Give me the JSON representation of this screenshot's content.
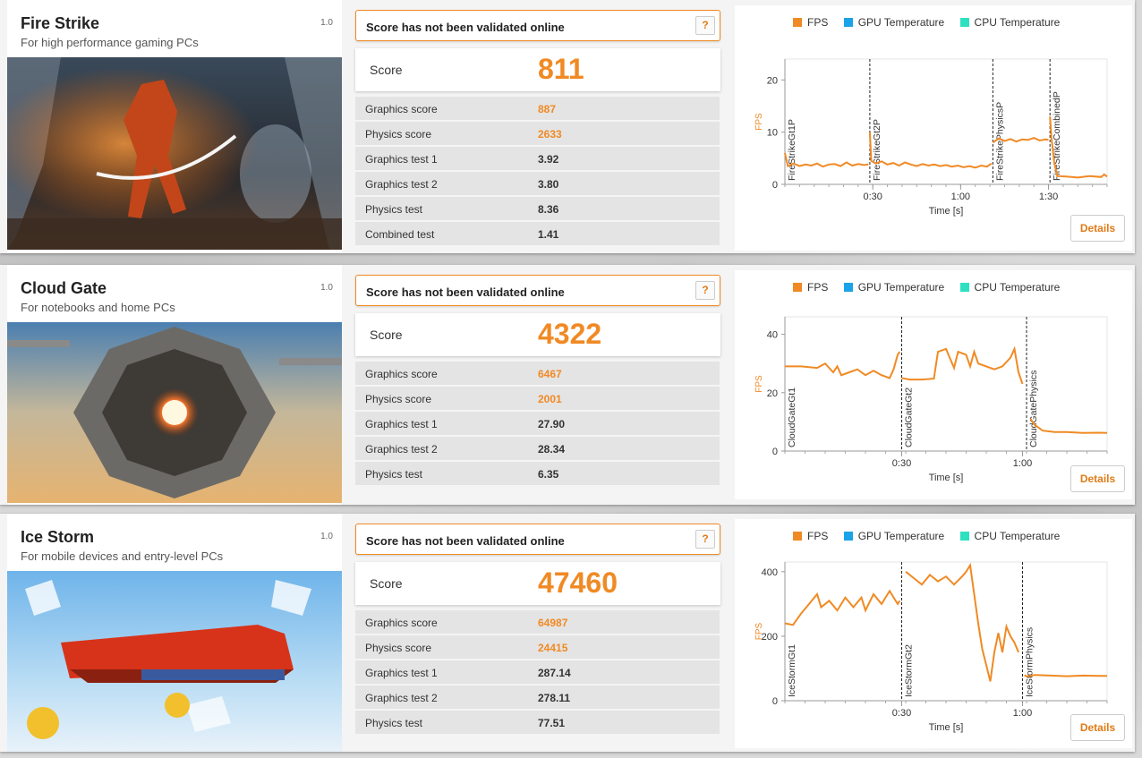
{
  "legend": {
    "fps": "FPS",
    "gpu_temp": "GPU Temperature",
    "cpu_temp": "CPU Temperature",
    "colors": {
      "fps": "#f08a24",
      "gpu_temp": "#1aa3e8",
      "cpu_temp": "#2de0c0"
    }
  },
  "common": {
    "validation_text": "Score has not been validated online",
    "help_label": "?",
    "score_label": "Score",
    "details_label": "Details",
    "x_axis_label": "Time [s]",
    "y_axis_label": "FPS"
  },
  "benchmarks": [
    {
      "title": "Fire Strike",
      "subtitle": "For high performance gaming PCs",
      "version": "1.0",
      "score": "811",
      "rows": [
        {
          "label": "Graphics score",
          "value": "887",
          "highlight": true
        },
        {
          "label": "Physics score",
          "value": "2633",
          "highlight": true
        },
        {
          "label": "Graphics test 1",
          "value": "3.92",
          "highlight": false
        },
        {
          "label": "Graphics test 2",
          "value": "3.80",
          "highlight": false
        },
        {
          "label": "Physics test",
          "value": "8.36",
          "highlight": false
        },
        {
          "label": "Combined test",
          "value": "1.41",
          "highlight": false
        }
      ]
    },
    {
      "title": "Cloud Gate",
      "subtitle": "For notebooks and home PCs",
      "version": "1.0",
      "score": "4322",
      "rows": [
        {
          "label": "Graphics score",
          "value": "6467",
          "highlight": true
        },
        {
          "label": "Physics score",
          "value": "2001",
          "highlight": true
        },
        {
          "label": "Graphics test 1",
          "value": "27.90",
          "highlight": false
        },
        {
          "label": "Graphics test 2",
          "value": "28.34",
          "highlight": false
        },
        {
          "label": "Physics test",
          "value": "6.35",
          "highlight": false
        }
      ]
    },
    {
      "title": "Ice Storm",
      "subtitle": "For mobile devices and entry-level PCs",
      "version": "1.0",
      "score": "47460",
      "rows": [
        {
          "label": "Graphics score",
          "value": "64987",
          "highlight": true
        },
        {
          "label": "Physics score",
          "value": "24415",
          "highlight": true
        },
        {
          "label": "Graphics test 1",
          "value": "287.14",
          "highlight": false
        },
        {
          "label": "Graphics test 2",
          "value": "278.11",
          "highlight": false
        },
        {
          "label": "Physics test",
          "value": "77.51",
          "highlight": false
        }
      ]
    }
  ],
  "chart_data": [
    {
      "type": "line",
      "xlabel": "Time [s]",
      "ylabel": "FPS",
      "xlim": [
        0,
        110
      ],
      "ylim": [
        0,
        24
      ],
      "yticks": [
        0,
        10,
        20
      ],
      "xticks": [
        {
          "v": 30,
          "label": "0:30"
        },
        {
          "v": 60,
          "label": "1:00"
        },
        {
          "v": 90,
          "label": "1:30"
        }
      ],
      "markers": [
        {
          "x": 0,
          "label": "FireStrikeGt1P"
        },
        {
          "x": 29,
          "label": "FireStrikeGt2P"
        },
        {
          "x": 71,
          "label": "FireStrikePhysicsP"
        },
        {
          "x": 90.5,
          "label": "FireStrikeCombinedP"
        }
      ],
      "series": [
        {
          "name": "FPS",
          "segments": [
            [
              [
                0,
                6
              ],
              [
                1,
                3.5
              ],
              [
                3,
                4
              ],
              [
                5,
                3.5
              ],
              [
                7,
                3.8
              ],
              [
                9,
                3.6
              ],
              [
                11,
                4
              ],
              [
                13,
                3.4
              ],
              [
                15,
                3.8
              ],
              [
                17,
                3.9
              ],
              [
                19,
                3.5
              ],
              [
                21,
                4.2
              ],
              [
                23,
                3.6
              ],
              [
                25,
                3.9
              ],
              [
                27,
                3.7
              ],
              [
                28.5,
                3.8
              ]
            ],
            [
              [
                29,
                10
              ],
              [
                29.5,
                4.5
              ],
              [
                31,
                4
              ],
              [
                33,
                4.4
              ],
              [
                35,
                3.8
              ],
              [
                37,
                4.1
              ],
              [
                39,
                3.6
              ],
              [
                41,
                4.2
              ],
              [
                43,
                3.8
              ],
              [
                45,
                3.5
              ],
              [
                47,
                3.9
              ],
              [
                49,
                3.6
              ],
              [
                51,
                3.8
              ],
              [
                53,
                3.5
              ],
              [
                55,
                3.7
              ],
              [
                57,
                3.4
              ],
              [
                59,
                3.6
              ],
              [
                61,
                3.3
              ],
              [
                63,
                3.5
              ],
              [
                65,
                3.2
              ],
              [
                67,
                3.6
              ],
              [
                69,
                3.4
              ],
              [
                70.5,
                4
              ]
            ],
            [
              [
                71,
                8
              ],
              [
                73,
                8.8
              ],
              [
                75,
                8.3
              ],
              [
                77,
                8.7
              ],
              [
                79,
                8.2
              ],
              [
                81,
                8.6
              ],
              [
                83,
                8.5
              ],
              [
                85,
                8.9
              ],
              [
                87,
                8.4
              ],
              [
                89,
                8.6
              ],
              [
                90,
                8.5
              ]
            ],
            [
              [
                90.5,
                13
              ],
              [
                91,
                9
              ],
              [
                92,
                4
              ],
              [
                93,
                1.6
              ],
              [
                96,
                1.5
              ],
              [
                100,
                1.3
              ],
              [
                104,
                1.6
              ],
              [
                108,
                1.4
              ],
              [
                109,
                1.9
              ],
              [
                110,
                1.5
              ]
            ]
          ]
        }
      ]
    },
    {
      "type": "line",
      "xlabel": "Time [s]",
      "ylabel": "FPS",
      "xlim": [
        0,
        80
      ],
      "ylim": [
        0,
        46
      ],
      "yticks": [
        0,
        20,
        40
      ],
      "xticks": [
        {
          "v": 29,
          "label": "0:30"
        },
        {
          "v": 59,
          "label": "1:00"
        }
      ],
      "markers": [
        {
          "x": 0,
          "label": "CloudGateGt1"
        },
        {
          "x": 29,
          "label": "CloudGateGt2"
        },
        {
          "x": 60,
          "label": "CloudGatePhysics"
        }
      ],
      "series": [
        {
          "name": "FPS",
          "segments": [
            [
              [
                0,
                29
              ],
              [
                4,
                29
              ],
              [
                8,
                28.5
              ],
              [
                10,
                30
              ],
              [
                12,
                27
              ],
              [
                13,
                29
              ],
              [
                14,
                26
              ],
              [
                16,
                27
              ],
              [
                18,
                28
              ],
              [
                20,
                26
              ],
              [
                22,
                27.5
              ],
              [
                24,
                26
              ],
              [
                26,
                25
              ],
              [
                27,
                28
              ],
              [
                28,
                33
              ],
              [
                28.5,
                34
              ]
            ],
            [
              [
                29,
                25
              ],
              [
                31,
                24.5
              ],
              [
                34,
                24.5
              ],
              [
                37,
                24.8
              ],
              [
                38,
                34
              ],
              [
                40,
                35
              ],
              [
                42,
                28.5
              ],
              [
                43,
                34
              ],
              [
                45,
                33
              ],
              [
                46,
                29
              ],
              [
                47,
                34
              ],
              [
                48,
                30
              ],
              [
                52,
                28
              ],
              [
                54,
                29
              ],
              [
                56,
                32
              ],
              [
                57,
                35
              ],
              [
                58,
                27
              ],
              [
                59,
                23
              ]
            ],
            [
              [
                61,
                11
              ],
              [
                62,
                9
              ],
              [
                64,
                7
              ],
              [
                67,
                6.5
              ],
              [
                70,
                6.5
              ],
              [
                74,
                6.2
              ],
              [
                78,
                6.3
              ],
              [
                80,
                6.2
              ]
            ]
          ]
        }
      ]
    },
    {
      "type": "line",
      "xlabel": "Time [s]",
      "ylabel": "FPS",
      "xlim": [
        0,
        80
      ],
      "ylim": [
        0,
        430
      ],
      "yticks": [
        0,
        200,
        400
      ],
      "xticks": [
        {
          "v": 29,
          "label": "0:30"
        },
        {
          "v": 59,
          "label": "1:00"
        }
      ],
      "markers": [
        {
          "x": 0,
          "label": "IceStormGt1"
        },
        {
          "x": 29,
          "label": "IceStormGt2"
        },
        {
          "x": 59,
          "label": "IceStormPhysics"
        }
      ],
      "series": [
        {
          "name": "FPS",
          "segments": [
            [
              [
                0,
                240
              ],
              [
                2,
                235
              ],
              [
                4,
                270
              ],
              [
                6,
                300
              ],
              [
                8,
                330
              ],
              [
                9,
                290
              ],
              [
                11,
                310
              ],
              [
                13,
                280
              ],
              [
                15,
                320
              ],
              [
                17,
                290
              ],
              [
                19,
                320
              ],
              [
                20,
                280
              ],
              [
                22,
                330
              ],
              [
                24,
                300
              ],
              [
                26,
                340
              ],
              [
                28,
                300
              ],
              [
                28.5,
                310
              ]
            ],
            [
              [
                30,
                400
              ],
              [
                32,
                380
              ],
              [
                34,
                360
              ],
              [
                36,
                390
              ],
              [
                38,
                370
              ],
              [
                40,
                385
              ],
              [
                42,
                360
              ],
              [
                44,
                385
              ],
              [
                45,
                400
              ],
              [
                46,
                420
              ],
              [
                47,
                330
              ],
              [
                48,
                240
              ],
              [
                49,
                160
              ],
              [
                50,
                110
              ],
              [
                51,
                60
              ],
              [
                52,
                150
              ],
              [
                53,
                210
              ],
              [
                54,
                150
              ],
              [
                55,
                230
              ],
              [
                56,
                200
              ],
              [
                57,
                180
              ],
              [
                58,
                150
              ]
            ],
            [
              [
                59.5,
                80
              ],
              [
                60,
                75
              ],
              [
                62,
                80
              ],
              [
                66,
                78
              ],
              [
                70,
                76
              ],
              [
                74,
                78
              ],
              [
                78,
                77
              ],
              [
                80,
                77
              ]
            ]
          ]
        }
      ]
    }
  ]
}
